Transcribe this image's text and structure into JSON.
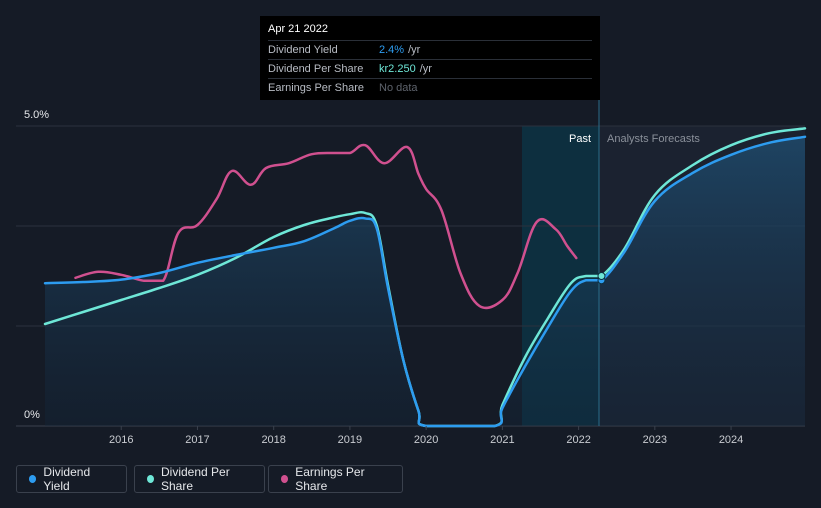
{
  "tooltip": {
    "date": "Apr 21 2022",
    "rows": [
      {
        "label": "Dividend Yield",
        "value": "2.4%",
        "unit": "/yr"
      },
      {
        "label": "Dividend Per Share",
        "value": "kr2.250",
        "unit": "/yr"
      },
      {
        "label": "Earnings Per Share",
        "value": "No data",
        "unit": ""
      }
    ]
  },
  "legend": {
    "items": [
      {
        "label": "Dividend Yield",
        "color": "#2d9cf0"
      },
      {
        "label": "Dividend Per Share",
        "color": "#6ee7d7"
      },
      {
        "label": "Earnings Per Share",
        "color": "#d0508f"
      }
    ]
  },
  "chart_data": {
    "type": "line",
    "title": "",
    "xlabel": "",
    "ylabel": "",
    "ylim": [
      0,
      5.0
    ],
    "y_tick_labels": [
      "5.0%",
      "0%"
    ],
    "x_ticks": [
      2016,
      2017,
      2018,
      2019,
      2020,
      2021,
      2022,
      2023,
      2024
    ],
    "xlim": [
      2015.0,
      2024.97
    ],
    "regions": {
      "past_label": "Past",
      "forecast_label": "Analysts Forecasts",
      "today": 2022.3
    },
    "grid": true,
    "series": [
      {
        "name": "Dividend Yield",
        "color": "#2d9cf0",
        "points": [
          [
            2015.0,
            2.38
          ],
          [
            2015.5,
            2.4
          ],
          [
            2016.0,
            2.44
          ],
          [
            2016.5,
            2.55
          ],
          [
            2017.0,
            2.72
          ],
          [
            2017.5,
            2.85
          ],
          [
            2018.0,
            2.97
          ],
          [
            2018.4,
            3.08
          ],
          [
            2018.8,
            3.3
          ],
          [
            2019.0,
            3.42
          ],
          [
            2019.2,
            3.46
          ],
          [
            2019.35,
            3.3
          ],
          [
            2019.5,
            2.3
          ],
          [
            2019.7,
            1.1
          ],
          [
            2019.9,
            0.25
          ],
          [
            2020.0,
            0.0
          ],
          [
            2020.9,
            0.0
          ],
          [
            2021.0,
            0.3
          ],
          [
            2021.3,
            1.0
          ],
          [
            2021.6,
            1.65
          ],
          [
            2021.9,
            2.25
          ],
          [
            2022.1,
            2.43
          ],
          [
            2022.3,
            2.43
          ],
          [
            2022.6,
            2.9
          ],
          [
            2023.0,
            3.75
          ],
          [
            2023.5,
            4.22
          ],
          [
            2024.0,
            4.52
          ],
          [
            2024.5,
            4.72
          ],
          [
            2024.97,
            4.82
          ]
        ]
      },
      {
        "name": "Dividend Per Share",
        "color": "#6ee7d7",
        "points": [
          [
            2015.0,
            1.7
          ],
          [
            2015.5,
            1.9
          ],
          [
            2016.0,
            2.1
          ],
          [
            2016.5,
            2.3
          ],
          [
            2017.0,
            2.52
          ],
          [
            2017.5,
            2.8
          ],
          [
            2018.0,
            3.15
          ],
          [
            2018.4,
            3.35
          ],
          [
            2018.8,
            3.48
          ],
          [
            2019.0,
            3.53
          ],
          [
            2019.2,
            3.55
          ],
          [
            2019.35,
            3.35
          ],
          [
            2019.5,
            2.35
          ],
          [
            2019.7,
            1.1
          ],
          [
            2019.9,
            0.25
          ],
          [
            2020.0,
            0.0
          ],
          [
            2020.9,
            0.0
          ],
          [
            2021.0,
            0.35
          ],
          [
            2021.3,
            1.15
          ],
          [
            2021.6,
            1.8
          ],
          [
            2021.9,
            2.38
          ],
          [
            2022.1,
            2.5
          ],
          [
            2022.3,
            2.5
          ],
          [
            2022.6,
            2.95
          ],
          [
            2023.0,
            3.85
          ],
          [
            2023.5,
            4.35
          ],
          [
            2024.0,
            4.68
          ],
          [
            2024.5,
            4.88
          ],
          [
            2024.97,
            4.96
          ]
        ]
      },
      {
        "name": "Earnings Per Share",
        "color": "#d0508f",
        "points": [
          [
            2015.4,
            2.47
          ],
          [
            2015.7,
            2.57
          ],
          [
            2016.0,
            2.52
          ],
          [
            2016.3,
            2.42
          ],
          [
            2016.55,
            2.42
          ],
          [
            2016.75,
            3.22
          ],
          [
            2017.0,
            3.35
          ],
          [
            2017.25,
            3.78
          ],
          [
            2017.45,
            4.25
          ],
          [
            2017.7,
            4.02
          ],
          [
            2017.9,
            4.3
          ],
          [
            2018.2,
            4.38
          ],
          [
            2018.5,
            4.53
          ],
          [
            2018.8,
            4.55
          ],
          [
            2019.0,
            4.55
          ],
          [
            2019.2,
            4.68
          ],
          [
            2019.45,
            4.38
          ],
          [
            2019.75,
            4.65
          ],
          [
            2019.9,
            4.2
          ],
          [
            2020.0,
            3.95
          ],
          [
            2020.2,
            3.6
          ],
          [
            2020.45,
            2.55
          ],
          [
            2020.7,
            2.0
          ],
          [
            2021.0,
            2.1
          ],
          [
            2021.2,
            2.55
          ],
          [
            2021.45,
            3.4
          ],
          [
            2021.7,
            3.28
          ],
          [
            2021.85,
            3.0
          ],
          [
            2021.97,
            2.8
          ]
        ]
      }
    ]
  }
}
